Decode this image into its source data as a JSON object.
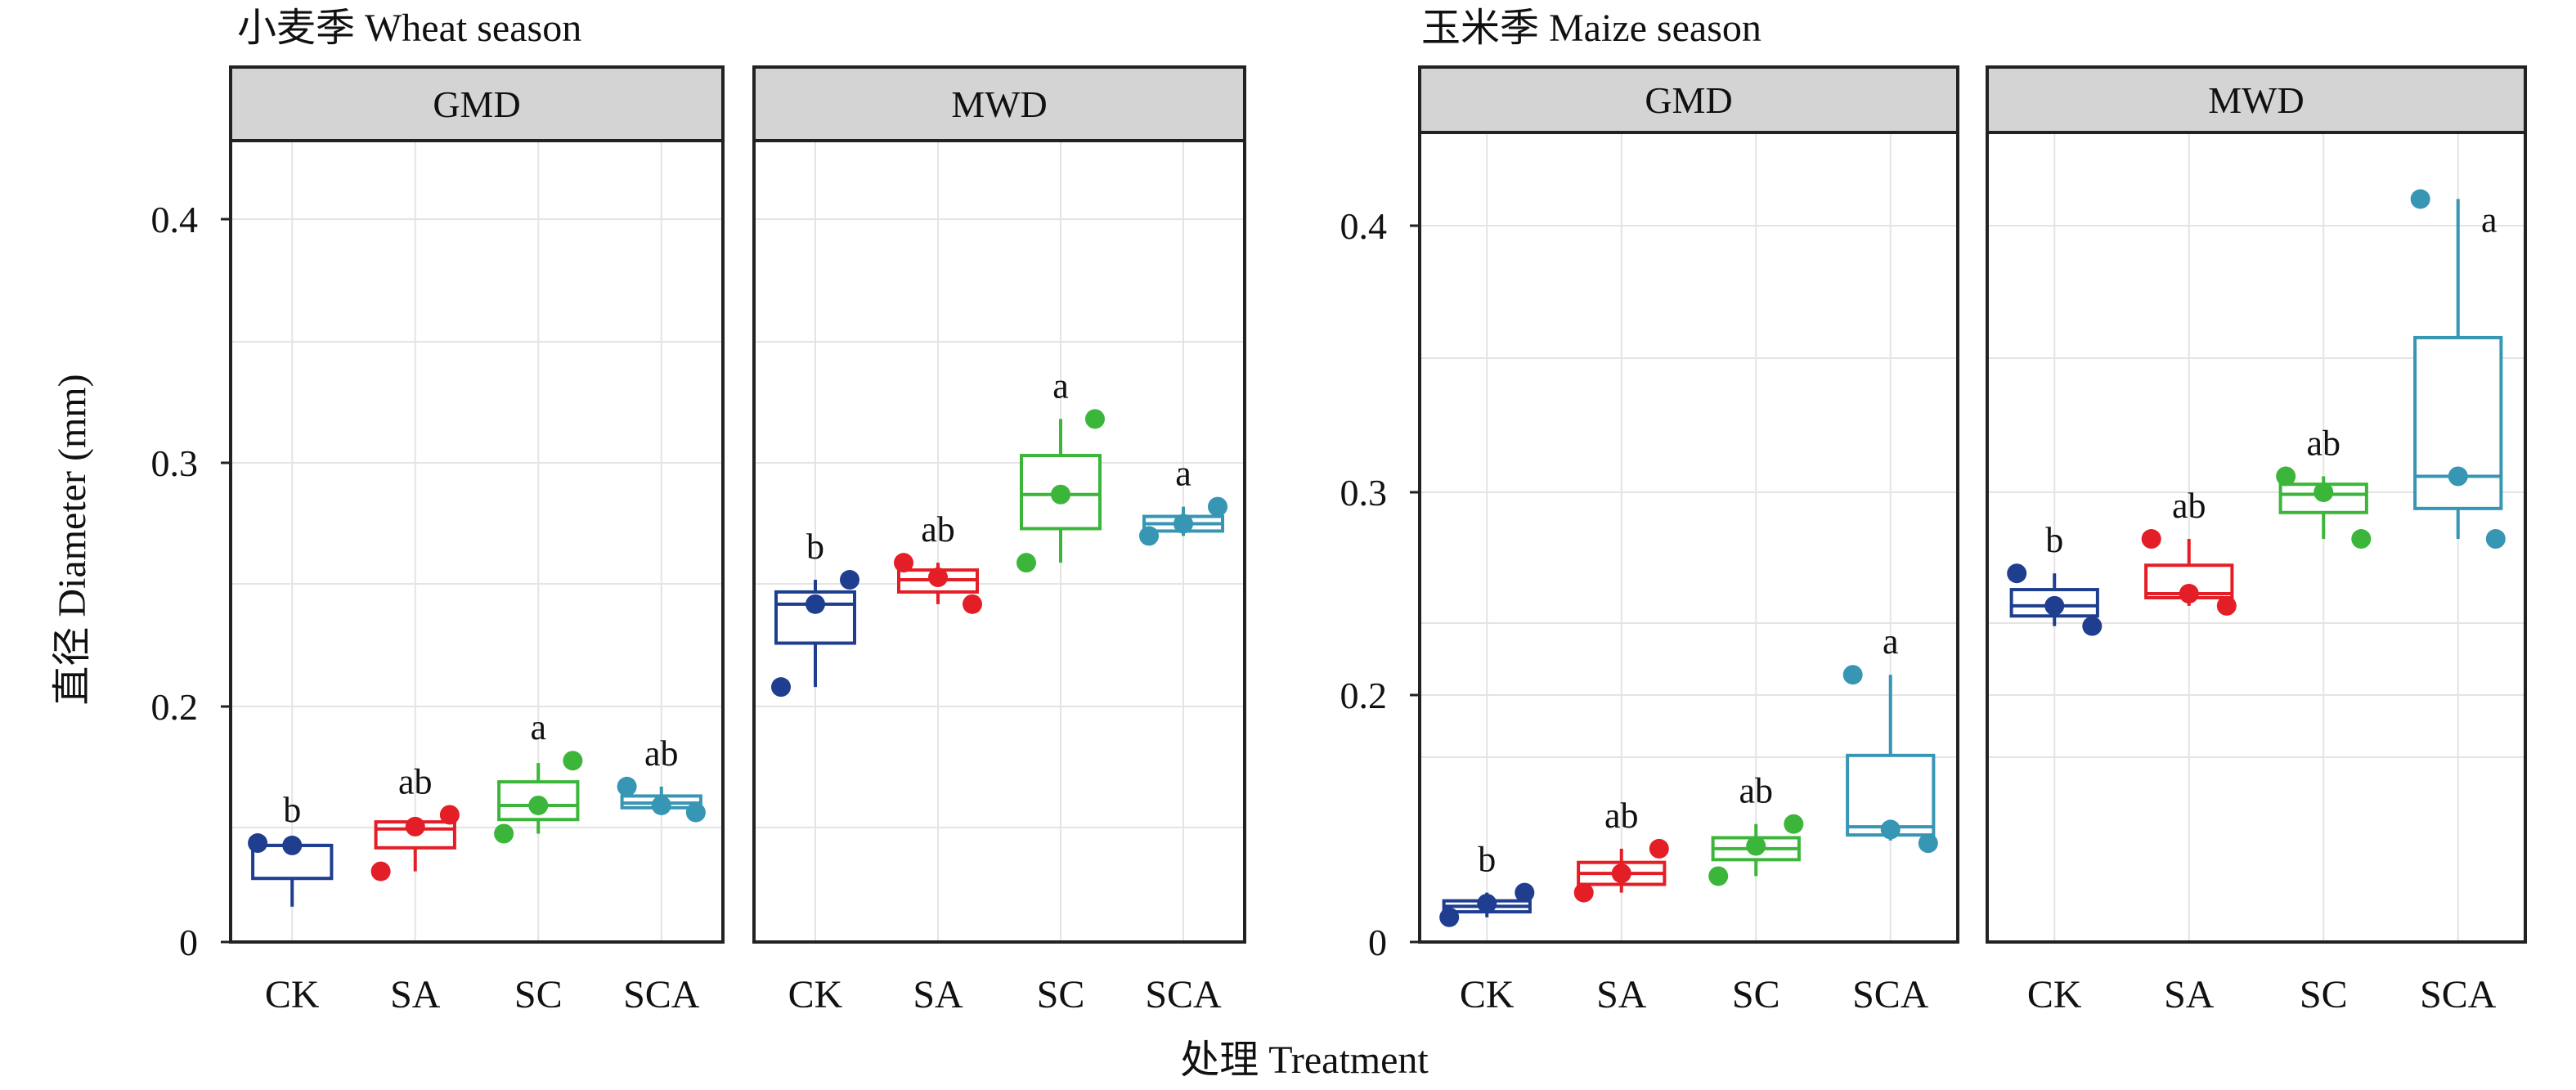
{
  "chart_data": {
    "type": "box",
    "ylabel": "直径 Diameter (mm)",
    "xlabel": "处理 Treatment",
    "categories": [
      "CK",
      "SA",
      "SC",
      "SCA"
    ],
    "category_colors": [
      "#1f3e8f",
      "#e41e26",
      "#3cb63a",
      "#3796b4"
    ],
    "seasons": [
      {
        "title": "小麦季 Wheat season",
        "y_ticks": [
          "0",
          "0.2",
          "0.3",
          "0.4"
        ],
        "panels": [
          {
            "label": "GMD",
            "boxes": [
              {
                "category": "CK",
                "min": 0.115,
                "q1": 0.127,
                "median": 0.141,
                "q3": 0.141,
                "max": 0.141,
                "points": [
                  0.142,
                  0.141
                ],
                "sig": "b"
              },
              {
                "category": "SA",
                "min": 0.13,
                "q1": 0.14,
                "median": 0.148,
                "q3": 0.151,
                "max": 0.153,
                "points": [
                  0.13,
                  0.149,
                  0.154
                ],
                "sig": "ab"
              },
              {
                "category": "SC",
                "min": 0.146,
                "q1": 0.152,
                "median": 0.158,
                "q3": 0.168,
                "max": 0.176,
                "points": [
                  0.146,
                  0.158,
                  0.177
                ],
                "sig": "a"
              },
              {
                "category": "SCA",
                "min": 0.155,
                "q1": 0.157,
                "median": 0.159,
                "q3": 0.162,
                "max": 0.166,
                "points": [
                  0.166,
                  0.158,
                  0.155
                ],
                "sig": "ab"
              }
            ]
          },
          {
            "label": "MWD",
            "boxes": [
              {
                "category": "CK",
                "min": 0.208,
                "q1": 0.226,
                "median": 0.242,
                "q3": 0.247,
                "max": 0.252,
                "points": [
                  0.208,
                  0.242,
                  0.252
                ],
                "sig": "b"
              },
              {
                "category": "SA",
                "min": 0.242,
                "q1": 0.247,
                "median": 0.252,
                "q3": 0.256,
                "max": 0.259,
                "points": [
                  0.259,
                  0.253,
                  0.242
                ],
                "sig": "ab"
              },
              {
                "category": "SC",
                "min": 0.259,
                "q1": 0.273,
                "median": 0.287,
                "q3": 0.303,
                "max": 0.318,
                "points": [
                  0.259,
                  0.287,
                  0.318
                ],
                "sig": "a"
              },
              {
                "category": "SCA",
                "min": 0.27,
                "q1": 0.272,
                "median": 0.275,
                "q3": 0.278,
                "max": 0.282,
                "points": [
                  0.27,
                  0.275,
                  0.282
                ],
                "sig": "a"
              }
            ]
          }
        ]
      },
      {
        "title": "玉米季 Maize season",
        "y_ticks": [
          "0",
          "0.2",
          "0.3",
          "0.4"
        ],
        "panels": [
          {
            "label": "GMD",
            "boxes": [
              {
                "category": "CK",
                "min": 0.119,
                "q1": 0.121,
                "median": 0.123,
                "q3": 0.125,
                "max": 0.128,
                "points": [
                  0.119,
                  0.124,
                  0.128
                ],
                "sig": "b"
              },
              {
                "category": "SA",
                "min": 0.128,
                "q1": 0.131,
                "median": 0.135,
                "q3": 0.139,
                "max": 0.144,
                "points": [
                  0.128,
                  0.135,
                  0.144
                ],
                "sig": "ab"
              },
              {
                "category": "SC",
                "min": 0.134,
                "q1": 0.14,
                "median": 0.144,
                "q3": 0.148,
                "max": 0.153,
                "points": [
                  0.134,
                  0.145,
                  0.153
                ],
                "sig": "ab"
              },
              {
                "category": "SCA",
                "min": 0.147,
                "q1": 0.149,
                "median": 0.152,
                "q3": 0.178,
                "max": 0.21,
                "points": [
                  0.21,
                  0.151,
                  0.146
                ],
                "sig": "a"
              }
            ]
          },
          {
            "label": "MWD",
            "boxes": [
              {
                "category": "CK",
                "min": 0.234,
                "q1": 0.239,
                "median": 0.244,
                "q3": 0.252,
                "max": 0.26,
                "points": [
                  0.26,
                  0.244,
                  0.234
                ],
                "sig": "b"
              },
              {
                "category": "SA",
                "min": 0.244,
                "q1": 0.248,
                "median": 0.25,
                "q3": 0.264,
                "max": 0.277,
                "points": [
                  0.277,
                  0.25,
                  0.244
                ],
                "sig": "ab"
              },
              {
                "category": "SC",
                "min": 0.277,
                "q1": 0.29,
                "median": 0.299,
                "q3": 0.303,
                "max": 0.306,
                "points": [
                  0.306,
                  0.3,
                  0.277
                ],
                "sig": "ab"
              },
              {
                "category": "SCA",
                "min": 0.277,
                "q1": 0.292,
                "median": 0.306,
                "q3": 0.358,
                "max": 0.41,
                "points": [
                  0.41,
                  0.306,
                  0.277
                ],
                "sig": "a"
              }
            ]
          }
        ]
      }
    ]
  }
}
